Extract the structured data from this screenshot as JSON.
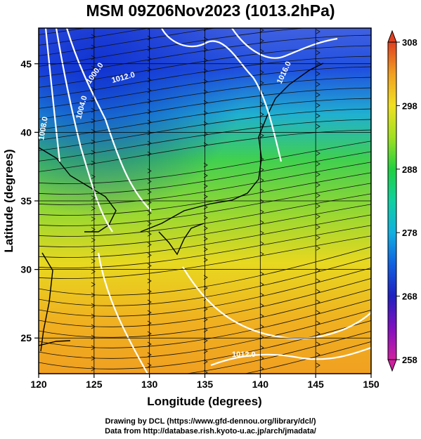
{
  "title": "MSM 09Z06Nov2023 (1013.2hPa)",
  "axes": {
    "xlabel": "Longitude (degrees)",
    "ylabel": "Latitude  (degrees)",
    "xticks": [
      "120",
      "125",
      "130",
      "135",
      "140",
      "145",
      "150"
    ],
    "yticks": [
      "25",
      "30",
      "35",
      "40",
      "45"
    ],
    "xlim": [
      120,
      150
    ],
    "ylim": [
      22.4,
      47.6
    ]
  },
  "colorbar": {
    "ticks": [
      "258",
      "268",
      "278",
      "288",
      "298",
      "308"
    ],
    "range": [
      258,
      308
    ],
    "colors": [
      "#d020a0",
      "#5010b0",
      "#1040e0",
      "#10a0e0",
      "#10d0a0",
      "#20d040",
      "#a0e020",
      "#f0e020",
      "#f0b020",
      "#e05020"
    ]
  },
  "isobar_labels": [
    "1000.0",
    "1004.0",
    "1008.0",
    "1012.0",
    "1016.0",
    "1012.0"
  ],
  "credits": {
    "line1": "Drawing by DCL (https://www.gfd-dennou.org/library/dcl/)",
    "line2": "Data from http://database.rish.kyoto-u.ac.jp/arch/jmadata/"
  }
}
